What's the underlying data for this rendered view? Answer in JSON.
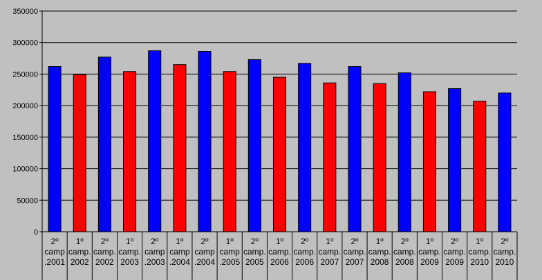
{
  "chart_data": {
    "type": "bar",
    "categories": [
      [
        "2º",
        "camp",
        ".2001"
      ],
      [
        "1º",
        "camp.",
        "2002"
      ],
      [
        "2º",
        "camp.",
        "2002"
      ],
      [
        "1º",
        "camp.",
        "2003"
      ],
      [
        "2º",
        "camp",
        ".2003"
      ],
      [
        "1º",
        "camp",
        ".2004"
      ],
      [
        "2º",
        "camp",
        ".2004"
      ],
      [
        "1º",
        "camp",
        ".2005"
      ],
      [
        "2º",
        "camp.",
        "2005"
      ],
      [
        "1º",
        "camp.",
        "2006"
      ],
      [
        "2º",
        "camp.",
        "2006"
      ],
      [
        "1º",
        "camp.",
        "2007"
      ],
      [
        "2º",
        "camp.",
        "2007"
      ],
      [
        "1º",
        "camp.",
        "2008"
      ],
      [
        "2º",
        "camp.",
        "2008"
      ],
      [
        "1º",
        "camp.",
        "2009"
      ],
      [
        "2º",
        "camp.",
        "2009"
      ],
      [
        "1º",
        "camp.",
        "2010"
      ],
      [
        "2º",
        "camp.",
        "2010"
      ]
    ],
    "values": [
      262000,
      249000,
      277000,
      254000,
      287000,
      265000,
      286000,
      254000,
      273000,
      245000,
      267000,
      236000,
      262000,
      235000,
      252000,
      222000,
      227000,
      207000,
      220000
    ],
    "bar_colors": [
      "#0000ff",
      "#ff0000",
      "#0000ff",
      "#ff0000",
      "#0000ff",
      "#ff0000",
      "#0000ff",
      "#ff0000",
      "#0000ff",
      "#ff0000",
      "#0000ff",
      "#ff0000",
      "#0000ff",
      "#ff0000",
      "#0000ff",
      "#ff0000",
      "#0000ff",
      "#ff0000",
      "#0000ff"
    ],
    "y_ticks": [
      0,
      50000,
      100000,
      150000,
      200000,
      250000,
      300000,
      350000
    ],
    "ylim": [
      0,
      350000
    ],
    "grid": true,
    "title": "",
    "xlabel": "",
    "ylabel": ""
  },
  "colors": {
    "background": "#c0c0c0",
    "gridline": "#000000"
  }
}
